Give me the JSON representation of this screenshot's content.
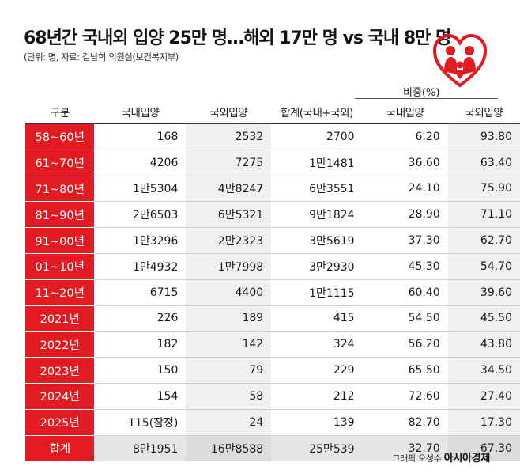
{
  "title": "68년간 국내외 입양 25만 명…해외 17만 명 vs 국내 8만 명",
  "subtitle": "(단위: 명, 자료: 김남희 의원실(보건복지부)",
  "ratio_header": "비중(%)",
  "columns": [
    "구분",
    "국내입양",
    "국외입양",
    "합계(국내+국외)",
    "국내입양",
    "국외입양"
  ],
  "rows": [
    [
      "58~60년",
      "168",
      "2532",
      "2700",
      "6.20",
      "93.80"
    ],
    [
      "61~70년",
      "4206",
      "7275",
      "1만1481",
      "36.60",
      "63.40"
    ],
    [
      "71~80년",
      "1만5304",
      "4만8247",
      "6만3551",
      "24.10",
      "75.90"
    ],
    [
      "81~90년",
      "2만6503",
      "6만5321",
      "9만1824",
      "28.90",
      "71.10"
    ],
    [
      "91~00년",
      "1만3296",
      "2만2323",
      "3만5619",
      "37.30",
      "62.70"
    ],
    [
      "01~10년",
      "1만4932",
      "1만7998",
      "3만2930",
      "45.30",
      "54.70"
    ],
    [
      "11~20년",
      "6715",
      "4400",
      "1만1115",
      "60.40",
      "39.60"
    ],
    [
      "2021년",
      "226",
      "189",
      "415",
      "54.50",
      "45.50"
    ],
    [
      "2022년",
      "182",
      "142",
      "324",
      "56.20",
      "43.80"
    ],
    [
      "2023년",
      "150",
      "79",
      "229",
      "65.50",
      "34.50"
    ],
    [
      "2024년",
      "154",
      "58",
      "212",
      "72.60",
      "27.40"
    ],
    [
      "2025년",
      "115(잠정)",
      "24",
      "139",
      "82.70",
      "17.30"
    ]
  ],
  "total": [
    "합계",
    "8만1951",
    "16만8588",
    "25만539",
    "32.70",
    "67.30"
  ],
  "credit_prefix": "그래픽 오성수",
  "credit_brand": "아시아경제",
  "colors": {
    "accent": "#e21b23"
  },
  "logo_icon": "heart-family-icon"
}
